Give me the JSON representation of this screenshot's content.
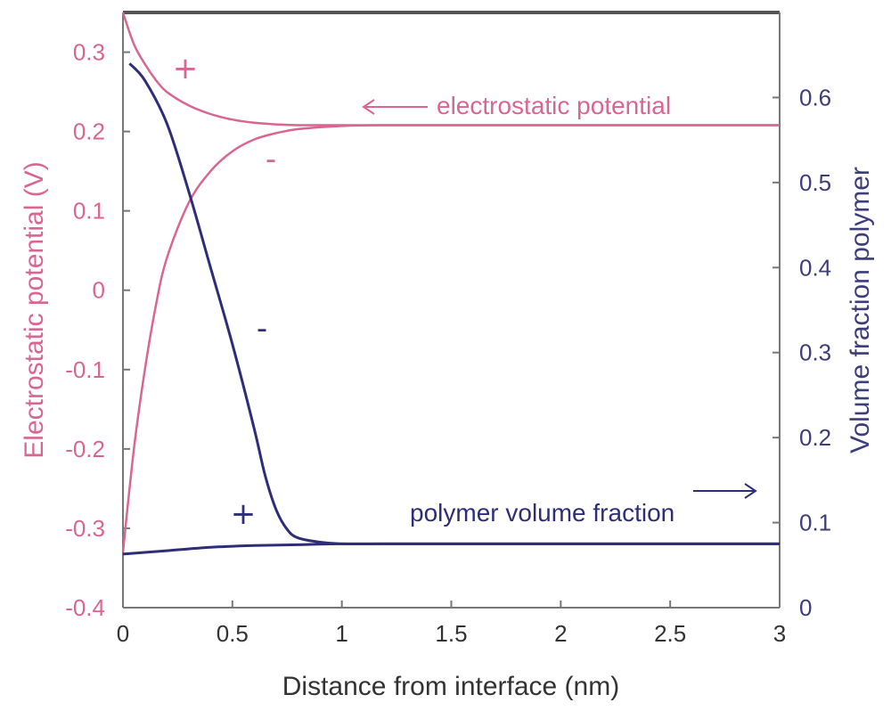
{
  "chart_data": {
    "type": "line",
    "xlabel": "Distance from interface (nm)",
    "ylabel_left": "Electrostatic potential (V)",
    "ylabel_right": "Volume fraction polymer",
    "xlim": [
      0,
      3
    ],
    "ylim_left": [
      -0.4,
      0.35
    ],
    "ylim_right": [
      0,
      0.7
    ],
    "x_ticks": [
      "0",
      "0.5",
      "1",
      "1.5",
      "2",
      "2.5",
      "3"
    ],
    "y_ticks_left": [
      "0.3",
      "0.2",
      "0.1",
      "0",
      "-0.1",
      "-0.2",
      "-0.3",
      "-0.4"
    ],
    "y_ticks_right": [
      "0.6",
      "0.5",
      "0.4",
      "0.3",
      "0.2",
      "0.1",
      "0"
    ],
    "grid": false,
    "colors": {
      "potential": "#d9668f",
      "polymer": "#2e2e78",
      "frame": "#333333"
    },
    "annotations": {
      "potential_label": "electrostatic potential",
      "polymer_label": "polymer volume fraction",
      "plus": "+",
      "minus": "-"
    },
    "series": [
      {
        "axis": "left",
        "x": [
          0,
          0.05,
          0.1,
          0.15,
          0.2,
          0.3,
          0.4,
          0.5,
          0.6,
          0.7,
          0.8,
          1.0,
          1.2,
          1.5,
          2.0,
          2.5,
          3.0
        ],
        "values": [
          0.35,
          0.31,
          0.285,
          0.265,
          0.25,
          0.233,
          0.222,
          0.215,
          0.211,
          0.209,
          0.208,
          0.208,
          0.208,
          0.208,
          0.208,
          0.208,
          0.208
        ]
      },
      {
        "axis": "left",
        "x": [
          0,
          0.05,
          0.1,
          0.15,
          0.2,
          0.3,
          0.4,
          0.5,
          0.6,
          0.7,
          0.8,
          1.0,
          1.2,
          1.5,
          2.0,
          2.5,
          3.0
        ],
        "values": [
          -0.33,
          -0.2,
          -0.1,
          -0.02,
          0.04,
          0.11,
          0.15,
          0.175,
          0.19,
          0.198,
          0.203,
          0.207,
          0.208,
          0.208,
          0.208,
          0.208,
          0.208
        ]
      },
      {
        "axis": "right",
        "x": [
          0.03,
          0.1,
          0.2,
          0.3,
          0.4,
          0.5,
          0.6,
          0.65,
          0.7,
          0.75,
          0.8,
          0.9,
          1.0,
          1.2,
          1.5,
          2.0,
          2.5,
          3.0
        ],
        "values": [
          0.64,
          0.62,
          0.57,
          0.49,
          0.4,
          0.31,
          0.21,
          0.155,
          0.115,
          0.092,
          0.082,
          0.077,
          0.075,
          0.075,
          0.075,
          0.075,
          0.075,
          0.075
        ]
      },
      {
        "axis": "right",
        "x": [
          0,
          0.2,
          0.4,
          0.6,
          0.8,
          1.0,
          1.5,
          2.0,
          2.5,
          3.0
        ],
        "values": [
          0.063,
          0.067,
          0.071,
          0.073,
          0.074,
          0.075,
          0.075,
          0.075,
          0.075,
          0.075
        ]
      }
    ]
  }
}
